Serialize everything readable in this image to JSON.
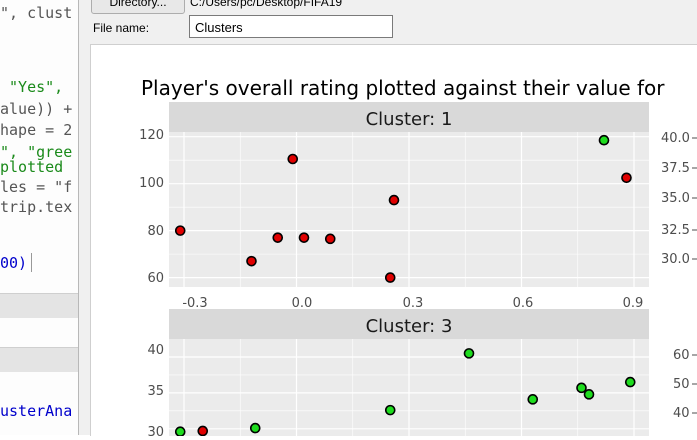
{
  "editor": {
    "lines": [
      {
        "parts": [
          {
            "t": "\", clust",
            "c": "op"
          }
        ]
      },
      {
        "parts": [
          {
            "t": " \"Yes\",",
            "c": "str"
          }
        ]
      },
      {
        "parts": [
          {
            "t": "alue)) +",
            "c": "op"
          }
        ]
      },
      {
        "parts": [
          {
            "t": "hape = 2",
            "c": "op"
          }
        ]
      },
      {
        "parts": [
          {
            "t": "\", \"gree",
            "c": "str"
          }
        ]
      },
      {
        "parts": [
          {
            "t": "plotted",
            "c": "str"
          }
        ]
      },
      {
        "parts": [
          {
            "t": "les = \"f",
            "c": "op"
          }
        ]
      },
      {
        "parts": [
          {
            "t": "trip.tex",
            "c": "op"
          }
        ]
      },
      {
        "parts": [
          {
            "t": "00)",
            "c": "num"
          }
        ]
      },
      {
        "parts": [
          {
            "t": "usterAna",
            "c": "num"
          }
        ]
      }
    ]
  },
  "dialog": {
    "directory_button": "Directory...",
    "directory_path": "C:/Users/pc/Desktop/FIFA19",
    "file_name_label": "File name:",
    "file_name_value": "Clusters"
  },
  "colors": {
    "panel_bg": "#ebebeb",
    "strip_bg": "#d9d9d9",
    "point_red": "#e00000",
    "point_green": "#1edc1e"
  },
  "plot": {
    "title": "Player's overall rating plotted against their value for",
    "strips": [
      "Cluster: 1",
      "Cluster: 3"
    ],
    "axes": {
      "top_left_y_ticks": [
        "120",
        "100",
        "80",
        "60"
      ],
      "top_x_ticks": [
        "-0.3",
        "0.0",
        "0.3",
        "0.6",
        "0.9"
      ],
      "top_right_y_ticks": [
        "40.0",
        "37.5",
        "35.0",
        "32.5",
        "30.0"
      ],
      "bottom_left_y_ticks": [
        "40",
        "35",
        "30"
      ],
      "bottom_right_y_ticks": [
        "60",
        "50",
        "40"
      ]
    }
  },
  "chart_data": {
    "type": "scatter",
    "title": "Player's overall rating plotted against their value for",
    "panels": [
      {
        "name": "Cluster: 1",
        "xlim": [
          -0.34,
          0.94
        ],
        "ylim": [
          56,
          122
        ],
        "points": [
          {
            "x": -0.31,
            "y": 80,
            "c": "red"
          },
          {
            "x": -0.12,
            "y": 67,
            "c": "red"
          },
          {
            "x": -0.05,
            "y": 77,
            "c": "red"
          },
          {
            "x": -0.01,
            "y": 110.5,
            "c": "red"
          },
          {
            "x": 0.02,
            "y": 77,
            "c": "red"
          },
          {
            "x": 0.09,
            "y": 76.5,
            "c": "red"
          },
          {
            "x": 0.26,
            "y": 93,
            "c": "red"
          },
          {
            "x": 0.25,
            "y": 60,
            "c": "red"
          },
          {
            "x": 0.82,
            "y": 118.5,
            "c": "green"
          },
          {
            "x": 0.88,
            "y": 102.5,
            "c": "green_red"
          }
        ]
      },
      {
        "name": "Cluster: 3",
        "xlim": [
          -0.34,
          0.94
        ],
        "ylim": [
          29,
          42.5
        ],
        "points": [
          {
            "x": -0.31,
            "y": 29.6,
            "c": "green"
          },
          {
            "x": -0.25,
            "y": 29.7,
            "c": "red"
          },
          {
            "x": -0.11,
            "y": 30.1,
            "c": "green"
          },
          {
            "x": 0.25,
            "y": 32.6,
            "c": "green"
          },
          {
            "x": 0.46,
            "y": 40.5,
            "c": "green"
          },
          {
            "x": 0.63,
            "y": 34.1,
            "c": "green"
          },
          {
            "x": 0.76,
            "y": 35.7,
            "c": "green"
          },
          {
            "x": 0.78,
            "y": 34.8,
            "c": "green"
          },
          {
            "x": 0.89,
            "y": 36.5,
            "c": "green"
          }
        ]
      }
    ]
  }
}
